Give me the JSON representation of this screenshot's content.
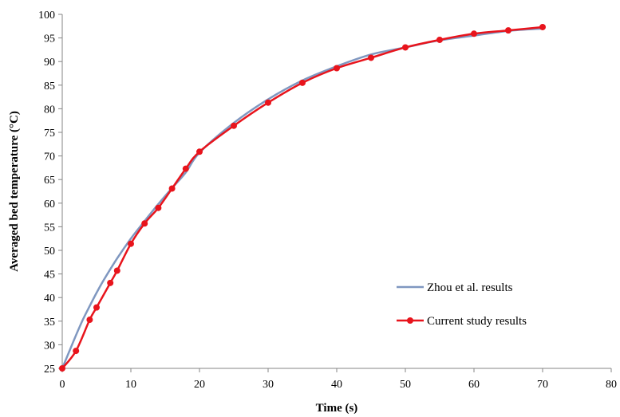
{
  "chart_data": {
    "type": "line",
    "title": "",
    "xlabel": "Time (s)",
    "ylabel": "Averaged bed temperature (°C)",
    "xlim": [
      0,
      80
    ],
    "ylim": [
      25,
      100
    ],
    "xticks": [
      "0",
      "10",
      "20",
      "30",
      "40",
      "50",
      "60",
      "70",
      "80"
    ],
    "yticks": [
      "25",
      "30",
      "35",
      "40",
      "45",
      "50",
      "55",
      "60",
      "65",
      "70",
      "75",
      "80",
      "85",
      "90",
      "95",
      "100"
    ],
    "grid": false,
    "legend_position": "bottom-right",
    "series": [
      {
        "name": "Zhou et al. results",
        "color": "#7f97c0",
        "marker": "none",
        "x": [
          0,
          1,
          2,
          3,
          4,
          5,
          6,
          8,
          10,
          12,
          14,
          16,
          18,
          20,
          25,
          30,
          35,
          40,
          45,
          50,
          55,
          60,
          65,
          70
        ],
        "y": [
          25,
          28.5,
          32,
          35.3,
          38.2,
          41,
          43.6,
          48.3,
          52.5,
          56.2,
          59.8,
          63.2,
          66.5,
          70.7,
          77,
          82,
          86,
          89,
          91.5,
          93,
          94.5,
          95.5,
          96.5,
          97
        ]
      },
      {
        "name": "Current study results",
        "color": "#e8141c",
        "marker": "circle",
        "x": [
          0,
          2,
          4,
          5,
          7,
          8,
          10,
          12,
          14,
          16,
          18,
          20,
          25,
          30,
          35,
          40,
          45,
          50,
          55,
          60,
          65,
          70
        ],
        "y": [
          25,
          28.7,
          35.3,
          37.9,
          43.1,
          45.7,
          51.4,
          55.7,
          59,
          63.1,
          67.3,
          70.9,
          76.4,
          81.3,
          85.5,
          88.6,
          90.8,
          93,
          94.6,
          95.9,
          96.6,
          97.3
        ]
      }
    ]
  }
}
